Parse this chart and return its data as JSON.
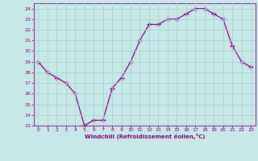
{
  "x": [
    0,
    1,
    2,
    3,
    4,
    5,
    6,
    7,
    8,
    9,
    10,
    11,
    12,
    13,
    14,
    15,
    16,
    17,
    18,
    19,
    20,
    21,
    22,
    23
  ],
  "y": [
    19,
    18,
    17.5,
    17,
    16,
    13,
    13.5,
    13.5,
    16.5,
    17.5,
    19,
    21,
    22.5,
    22.5,
    23,
    23,
    23.5,
    24,
    24,
    23.5,
    23,
    20.5,
    19,
    18.5
  ],
  "line_color": "#800080",
  "marker": "+",
  "marker_size": 4,
  "line_width": 0.9,
  "bg_color": "#c8e8e8",
  "grid_color": "#b0d8d8",
  "xlabel": "Windchill (Refroidissement éolien,°C)",
  "xlabel_color": "#800080",
  "tick_color": "#800080",
  "label_color": "#800080",
  "ylim": [
    13,
    24.5
  ],
  "xlim": [
    -0.5,
    23.5
  ],
  "yticks": [
    13,
    14,
    15,
    16,
    17,
    18,
    19,
    20,
    21,
    22,
    23,
    24
  ],
  "xticks": [
    0,
    1,
    2,
    3,
    4,
    5,
    6,
    7,
    8,
    9,
    10,
    11,
    12,
    13,
    14,
    15,
    16,
    17,
    18,
    19,
    20,
    21,
    22,
    23
  ]
}
